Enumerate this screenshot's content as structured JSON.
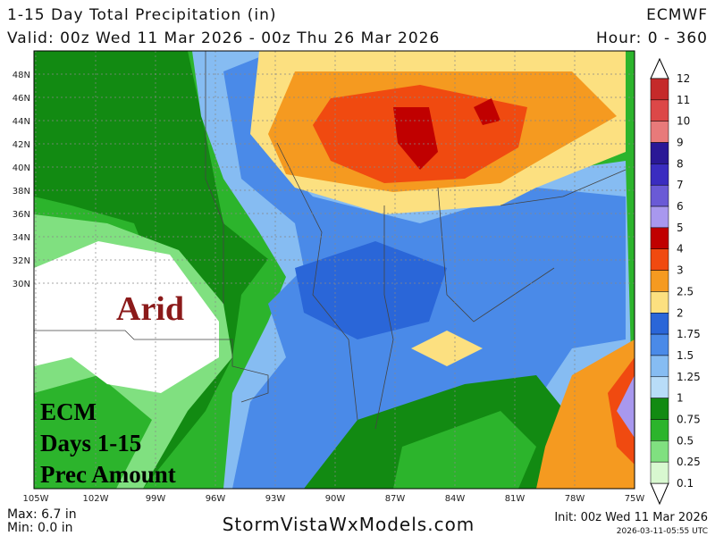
{
  "header": {
    "title": "1-15 Day Total Precipitation (in)",
    "model": "ECMWF",
    "valid": "Valid: 00z Wed 11 Mar 2026 - 00z Thu 26 Mar 2026",
    "hour": "Hour: 0 - 360"
  },
  "map": {
    "lat_labels": [
      "48N",
      "46N",
      "44N",
      "42N",
      "40N",
      "38N",
      "36N",
      "34N",
      "32N",
      "30N"
    ],
    "lon_labels": [
      "105W",
      "102W",
      "99W",
      "96W",
      "93W",
      "90W",
      "87W",
      "84W",
      "81W",
      "78W",
      "75W"
    ],
    "annotations": {
      "arid": "Arid",
      "lines": [
        "ECM",
        "Days 1-15",
        "Prec Amount"
      ]
    }
  },
  "colorbar": {
    "levels": [
      {
        "label": "12",
        "color": "#a3161a"
      },
      {
        "label": "11",
        "color": "#c52a2a"
      },
      {
        "label": "10",
        "color": "#dc4848"
      },
      {
        "label": "9",
        "color": "#e87a7a"
      },
      {
        "label": "8",
        "color": "#2a1896"
      },
      {
        "label": "7",
        "color": "#3a2cc0"
      },
      {
        "label": "6",
        "color": "#6a5ad6"
      },
      {
        "label": "5",
        "color": "#a898ee"
      },
      {
        "label": "4",
        "color": "#c00000"
      },
      {
        "label": "3",
        "color": "#f04a10"
      },
      {
        "label": "2.5",
        "color": "#f59a20"
      },
      {
        "label": "2",
        "color": "#fce080"
      },
      {
        "label": "1.75",
        "color": "#2a66d8"
      },
      {
        "label": "1.5",
        "color": "#4a8ae8"
      },
      {
        "label": "1.25",
        "color": "#86bcf2"
      },
      {
        "label": "1",
        "color": "#b8dcf8"
      },
      {
        "label": "0.75",
        "color": "#128a12"
      },
      {
        "label": "0.5",
        "color": "#2cb42c"
      },
      {
        "label": "0.25",
        "color": "#80e080"
      },
      {
        "label": "0.1",
        "color": "#d8f8d0"
      }
    ]
  },
  "footer": {
    "max": "Max: 6.7 in",
    "min": "Min: 0.0 in",
    "site": "StormVistaWxModels.com",
    "init": "Init: 00z Wed 11 Mar 2026",
    "stamp": "2026-03-11-05:55 UTC"
  }
}
